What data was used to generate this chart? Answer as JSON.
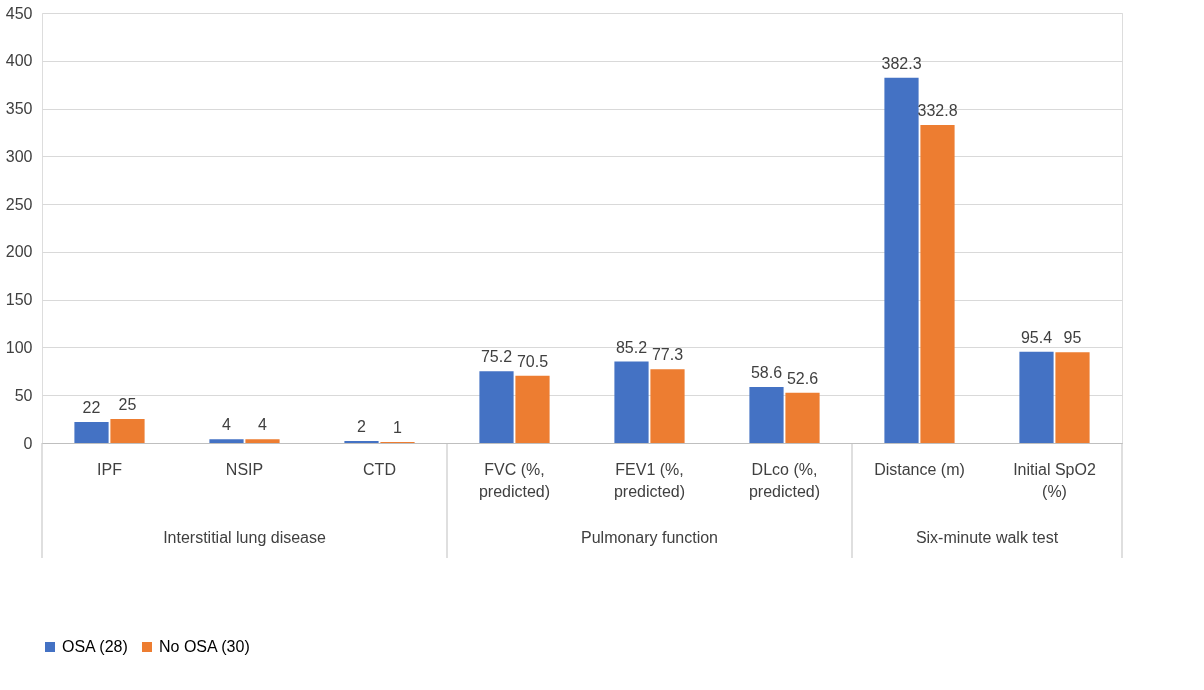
{
  "chart_data": {
    "type": "bar",
    "categories": [
      "IPF",
      "NSIP",
      "CTD",
      "FVC (%, predicted)",
      "FEV1 (%, predicted)",
      "DLco (%, predicted)",
      "Distance (m)",
      "Initial SpO2 (%)"
    ],
    "series": [
      {
        "name": "OSA (28)",
        "color": "#4472c4",
        "values": [
          22,
          4,
          2,
          75.2,
          85.2,
          58.6,
          382.3,
          95.4
        ]
      },
      {
        "name": "No OSA (30)",
        "color": "#ed7d31",
        "values": [
          25,
          4,
          1,
          70.5,
          77.3,
          52.6,
          332.8,
          95
        ]
      }
    ],
    "annotations": [
      "Interstitial lung disease",
      "Pulmonary function",
      "Six-minute walk test"
    ],
    "ylim": [
      0,
      450
    ],
    "yticks": [
      0,
      50,
      100,
      150,
      200,
      250,
      300,
      350,
      400,
      450
    ],
    "grid": "y",
    "legend": "bottom",
    "data_labels": true
  }
}
